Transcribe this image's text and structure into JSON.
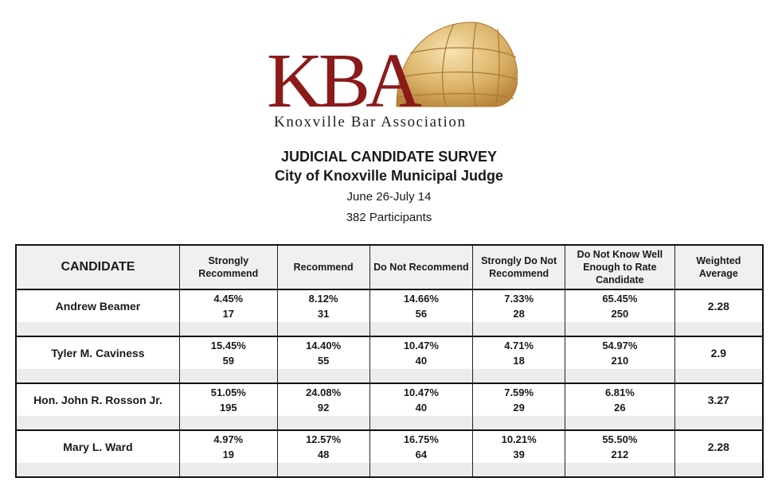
{
  "logo": {
    "letters": "KBA",
    "name": "Knoxville Bar Association",
    "brand_color": "#8b1a1a",
    "globe_color": "#d9b56a"
  },
  "survey": {
    "title": "JUDICIAL CANDIDATE SURVEY",
    "subtitle": "City of Knoxville Municipal Judge",
    "dates": "June 26-July 14",
    "participants": "382 Participants"
  },
  "table": {
    "headers": [
      "CANDIDATE",
      "Strongly Recommend",
      "Recommend",
      "Do Not Recommend",
      "Strongly Do Not Recommend",
      "Do Not Know Well Enough to Rate Candidate",
      "Weighted Average"
    ],
    "rows": [
      {
        "candidate": "Andrew Beamer",
        "cells": [
          {
            "pct": "4.45%",
            "count": "17"
          },
          {
            "pct": "8.12%",
            "count": "31"
          },
          {
            "pct": "14.66%",
            "count": "56"
          },
          {
            "pct": "7.33%",
            "count": "28"
          },
          {
            "pct": "65.45%",
            "count": "250"
          }
        ],
        "weighted": "2.28"
      },
      {
        "candidate": "Tyler M. Caviness",
        "cells": [
          {
            "pct": "15.45%",
            "count": "59"
          },
          {
            "pct": "14.40%",
            "count": "55"
          },
          {
            "pct": "10.47%",
            "count": "40"
          },
          {
            "pct": "4.71%",
            "count": "18"
          },
          {
            "pct": "54.97%",
            "count": "210"
          }
        ],
        "weighted": "2.9"
      },
      {
        "candidate": "Hon. John R. Rosson Jr.",
        "cells": [
          {
            "pct": "51.05%",
            "count": "195"
          },
          {
            "pct": "24.08%",
            "count": "92"
          },
          {
            "pct": "10.47%",
            "count": "40"
          },
          {
            "pct": "7.59%",
            "count": "29"
          },
          {
            "pct": "6.81%",
            "count": "26"
          }
        ],
        "weighted": "3.27"
      },
      {
        "candidate": "Mary L. Ward",
        "cells": [
          {
            "pct": "4.97%",
            "count": "19"
          },
          {
            "pct": "12.57%",
            "count": "48"
          },
          {
            "pct": "16.75%",
            "count": "64"
          },
          {
            "pct": "10.21%",
            "count": "39"
          },
          {
            "pct": "55.50%",
            "count": "212"
          }
        ],
        "weighted": "2.28"
      }
    ]
  }
}
